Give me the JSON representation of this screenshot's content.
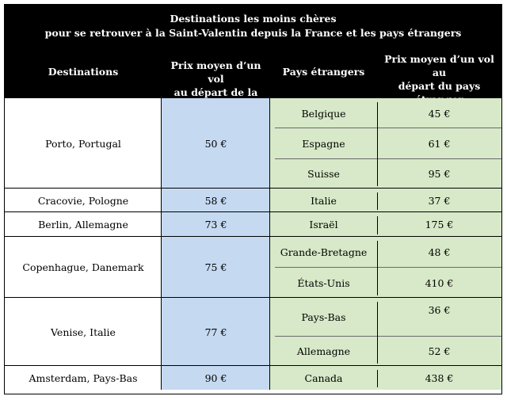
{
  "title": {
    "line1": "Destinations les moins chères",
    "line2": "pour se retrouver à la Saint-Valentin depuis la France et les pays étrangers"
  },
  "headers": {
    "destinations": "Destinations",
    "prix_france": [
      "Prix moyen d’un vol",
      "au départ de la France"
    ],
    "pays": "Pays étrangers",
    "prix_pays": [
      "Prix moyen d’un vol au",
      "départ du pays",
      "étranger"
    ]
  },
  "groups": [
    {
      "destination": "Porto, Portugal",
      "prix_france": "50 €",
      "rows": [
        {
          "pays": "Belgique",
          "prix": "45 €"
        },
        {
          "pays": "Espagne",
          "prix": "61 €"
        },
        {
          "pays": "Suisse",
          "prix": "95 €"
        }
      ]
    },
    {
      "destination": "Cracovie, Pologne",
      "prix_france": "58 €",
      "rows": [
        {
          "pays": "Italie",
          "prix": "37 €"
        }
      ]
    },
    {
      "destination": "Berlin, Allemagne",
      "prix_france": "73 €",
      "rows": [
        {
          "pays": "Israël",
          "prix": "175 €"
        }
      ]
    },
    {
      "destination": "Copenhague, Danemark",
      "prix_france": "75 €",
      "rows": [
        {
          "pays": "Grande-Bretagne",
          "prix": "48 €"
        },
        {
          "pays": "États-Unis",
          "prix": "410 €"
        }
      ]
    },
    {
      "destination": "Venise, Italie",
      "prix_france": "77 €",
      "rows": [
        {
          "pays": "Pays-Bas",
          "prix": "36 €"
        },
        {
          "pays": "Allemagne",
          "prix": "52 €"
        }
      ]
    },
    {
      "destination": "Amsterdam, Pays-Bas",
      "prix_france": "90 €",
      "rows": [
        {
          "pays": "Canada",
          "prix": "438 €"
        }
      ]
    }
  ]
}
